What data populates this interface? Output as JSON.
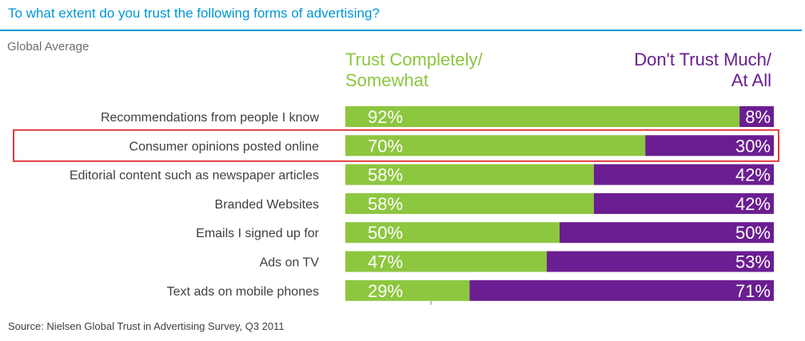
{
  "header": {
    "title": "To what extent do you trust the following forms of advertising?",
    "subtitle": "Global Average"
  },
  "legend": {
    "trust_line1": "Trust Completely/",
    "trust_line2": "Somewhat",
    "distrust_line1": "Don't Trust Much/",
    "distrust_line2": "At All"
  },
  "source": "Source: Nielsen Global Trust in Advertising Survey, Q3 2011",
  "colors": {
    "title": "#0096d6",
    "trust": "#8dc63f",
    "distrust": "#6a1e91",
    "highlight": "#e03a3e",
    "category_text": "#404040",
    "subtitle": "#6d6e71"
  },
  "chart_data": {
    "type": "bar",
    "orientation": "horizontal",
    "stacked": true,
    "percent_stacked": true,
    "categories": [
      "Recommendations from people I know",
      "Consumer opinions posted online",
      "Editorial content such as newspaper articles",
      "Branded Websites",
      "Emails I signed up for",
      "Ads on TV",
      "Text ads on mobile phones"
    ],
    "series": [
      {
        "name": "Trust Completely/ Somewhat",
        "values": [
          92,
          70,
          58,
          58,
          50,
          47,
          29
        ],
        "labels": [
          "92%",
          "70%",
          "58%",
          "58%",
          "50%",
          "47%",
          "29%"
        ]
      },
      {
        "name": "Don't Trust Much/ At All",
        "values": [
          8,
          30,
          42,
          42,
          50,
          53,
          71
        ],
        "labels": [
          "8%",
          "30%",
          "42%",
          "42%",
          "50%",
          "53%",
          "71%"
        ]
      }
    ],
    "xlim": [
      0,
      100
    ],
    "highlighted_category": "Consumer opinions posted online",
    "grid": false,
    "legend_position": "top"
  }
}
